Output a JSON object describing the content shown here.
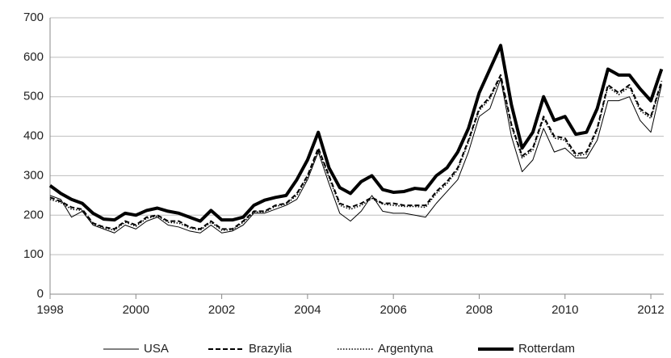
{
  "chart_data": {
    "type": "line",
    "x": [
      1998,
      1998.25,
      1998.5,
      1998.75,
      1999,
      1999.25,
      1999.5,
      1999.75,
      2000,
      2000.25,
      2000.5,
      2000.75,
      2001,
      2001.25,
      2001.5,
      2001.75,
      2002,
      2002.25,
      2002.5,
      2002.75,
      2003,
      2003.25,
      2003.5,
      2003.75,
      2004,
      2004.25,
      2004.5,
      2004.75,
      2005,
      2005.25,
      2005.5,
      2005.75,
      2006,
      2006.25,
      2006.5,
      2006.75,
      2007,
      2007.25,
      2007.5,
      2007.75,
      2008,
      2008.25,
      2008.5,
      2008.75,
      2009,
      2009.25,
      2009.5,
      2009.75,
      2010,
      2010.25,
      2010.5,
      2010.75,
      2011,
      2011.25,
      2011.5,
      2011.75,
      2012,
      2012.25
    ],
    "series": [
      {
        "name": "USA",
        "color": "#000000",
        "width": 1,
        "dash": "none",
        "values": [
          250,
          240,
          195,
          210,
          175,
          165,
          155,
          175,
          165,
          185,
          195,
          175,
          170,
          160,
          155,
          175,
          155,
          160,
          175,
          205,
          205,
          215,
          225,
          240,
          290,
          360,
          280,
          205,
          185,
          210,
          250,
          210,
          205,
          205,
          200,
          195,
          230,
          260,
          290,
          360,
          450,
          470,
          545,
          400,
          310,
          340,
          420,
          360,
          370,
          345,
          345,
          390,
          490,
          490,
          500,
          440,
          410,
          530
        ]
      },
      {
        "name": "Brazylia",
        "color": "#000000",
        "width": 2,
        "dash": "6 3",
        "values": [
          245,
          235,
          220,
          215,
          180,
          170,
          165,
          185,
          175,
          195,
          200,
          185,
          185,
          170,
          165,
          185,
          165,
          165,
          185,
          210,
          210,
          225,
          230,
          255,
          300,
          370,
          300,
          230,
          220,
          230,
          245,
          230,
          230,
          225,
          225,
          225,
          260,
          285,
          320,
          390,
          470,
          500,
          555,
          430,
          350,
          370,
          450,
          400,
          395,
          355,
          360,
          420,
          530,
          510,
          530,
          470,
          450,
          540
        ]
      },
      {
        "name": "Argentyna",
        "color": "#000000",
        "width": 1.5,
        "dash": "1.5 2",
        "values": [
          240,
          232,
          215,
          212,
          178,
          168,
          162,
          182,
          172,
          192,
          198,
          182,
          180,
          168,
          162,
          182,
          162,
          163,
          182,
          208,
          208,
          222,
          228,
          250,
          295,
          365,
          295,
          225,
          215,
          225,
          242,
          228,
          225,
          222,
          222,
          220,
          255,
          280,
          315,
          385,
          465,
          495,
          550,
          425,
          345,
          365,
          445,
          395,
          390,
          350,
          355,
          415,
          525,
          505,
          525,
          465,
          445,
          535
        ]
      },
      {
        "name": "Rotterdam",
        "color": "#000000",
        "width": 4,
        "dash": "none",
        "values": [
          275,
          255,
          240,
          230,
          205,
          190,
          188,
          205,
          200,
          212,
          218,
          210,
          205,
          195,
          185,
          212,
          188,
          188,
          195,
          225,
          238,
          245,
          250,
          290,
          340,
          410,
          320,
          270,
          255,
          285,
          300,
          265,
          258,
          260,
          268,
          265,
          300,
          320,
          360,
          420,
          510,
          570,
          630,
          480,
          370,
          410,
          500,
          440,
          450,
          405,
          410,
          470,
          570,
          555,
          555,
          520,
          490,
          570
        ]
      }
    ],
    "xlim": [
      1998,
      2012.3
    ],
    "xticks": [
      1998,
      2000,
      2002,
      2004,
      2006,
      2008,
      2010,
      2012
    ],
    "ylim": [
      0,
      700
    ],
    "yticks": [
      0,
      100,
      200,
      300,
      400,
      500,
      600,
      700
    ],
    "grid": true,
    "legend": "bottom"
  }
}
